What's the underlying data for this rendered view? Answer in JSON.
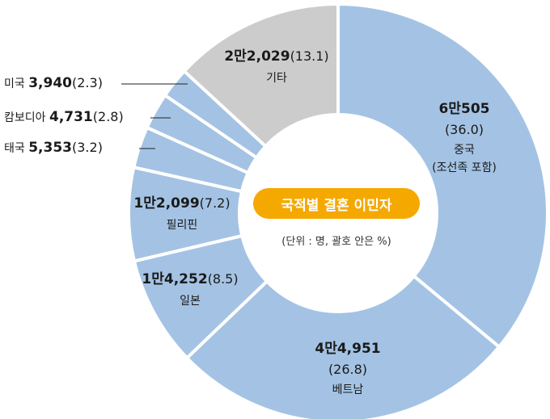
{
  "chart_data": {
    "type": "pie",
    "center_title": "국적별 결혼 이민자",
    "unit_note": "(단위 : 명, 괄호 안은 %)",
    "slices": [
      {
        "name": "중국",
        "sub": "(조선족 포함)",
        "value_label": "6만505",
        "value": 60505,
        "percent": 36.0,
        "percent_label": "(36.0)",
        "color": "#a4c3e4"
      },
      {
        "name": "베트남",
        "sub": "",
        "value_label": "4만4,951",
        "value": 44951,
        "percent": 26.8,
        "percent_label": "(26.8)",
        "color": "#a4c3e4"
      },
      {
        "name": "일본",
        "sub": "",
        "value_label": "1만4,252",
        "value": 14252,
        "percent": 8.5,
        "percent_label": "(8.5)",
        "color": "#a4c3e4"
      },
      {
        "name": "필리핀",
        "sub": "",
        "value_label": "1만2,099",
        "value": 12099,
        "percent": 7.2,
        "percent_label": "(7.2)",
        "color": "#a4c3e4"
      },
      {
        "name": "태국",
        "sub": "",
        "value_label": "5,353",
        "value": 5353,
        "percent": 3.2,
        "percent_label": "(3.2)",
        "color": "#a4c3e4"
      },
      {
        "name": "캄보디아",
        "sub": "",
        "value_label": "4,731",
        "value": 4731,
        "percent": 2.8,
        "percent_label": "(2.8)",
        "color": "#a4c3e4"
      },
      {
        "name": "미국",
        "sub": "",
        "value_label": "3,940",
        "value": 3940,
        "percent": 2.3,
        "percent_label": "(2.3)",
        "color": "#a4c3e4"
      },
      {
        "name": "기타",
        "sub": "",
        "value_label": "2만2,029",
        "value": 22029,
        "percent": 13.1,
        "percent_label": "(13.1)",
        "color": "#cccccc"
      }
    ]
  }
}
